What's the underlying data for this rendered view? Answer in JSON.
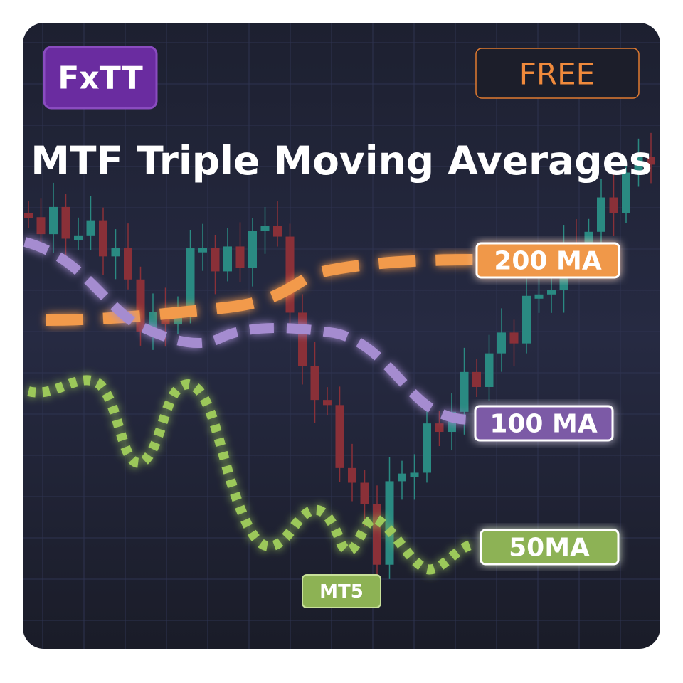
{
  "badge": "FxTT",
  "tag": "FREE",
  "title": "MTF Triple Moving Averages",
  "labels": [
    "200 MA",
    "100 MA",
    "50MA"
  ],
  "platform": "MT5"
}
